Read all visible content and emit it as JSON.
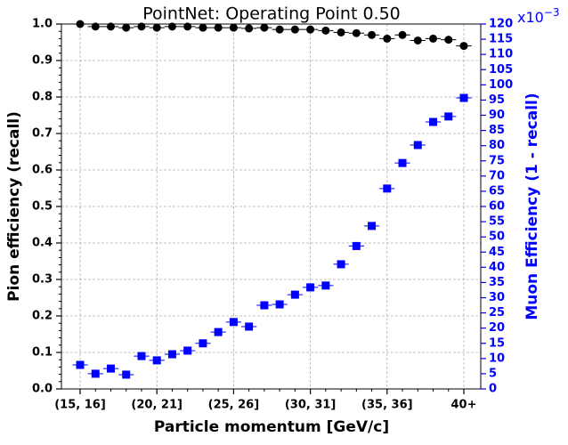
{
  "chart_data": {
    "type": "scatter",
    "title": "PointNet: Operating Point 0.50",
    "xlabel": "Particle momentum [GeV/c]",
    "ylabel": "Pion efficiency (recall)",
    "y2label": "Muon Efficiency (1 - recall)",
    "y2_offset_base": "x10",
    "y2_offset_exponent": "−3",
    "categories": [
      "(15, 16]",
      null,
      null,
      null,
      null,
      "(20, 21]",
      null,
      null,
      null,
      null,
      "(25, 26]",
      null,
      null,
      null,
      null,
      "(30, 31]",
      null,
      null,
      null,
      null,
      "(35, 36]",
      null,
      null,
      null,
      null,
      "40+"
    ],
    "ylim": [
      0,
      1
    ],
    "yticks": [
      {
        "value": 0,
        "label": "0.0"
      },
      0.1,
      0.2,
      0.3,
      0.4,
      0.5,
      0.6,
      0.7,
      0.8,
      0.9,
      {
        "value": 1,
        "label": "1.0"
      }
    ],
    "y2lim": [
      0,
      120
    ],
    "y2ticks": [
      0,
      5,
      10,
      15,
      20,
      25,
      30,
      35,
      40,
      45,
      50,
      55,
      60,
      65,
      70,
      75,
      80,
      85,
      90,
      95,
      100,
      105,
      110,
      115,
      120
    ],
    "grid": true,
    "series": [
      {
        "name": "Pion efficiency",
        "color": "#000000",
        "marker": "circle",
        "values": [
          1.0,
          0.993,
          0.993,
          0.99,
          0.993,
          0.99,
          0.993,
          0.993,
          0.99,
          0.99,
          0.99,
          0.988,
          0.99,
          0.985,
          0.985,
          0.985,
          0.982,
          0.977,
          0.975,
          0.97,
          0.96,
          0.97,
          0.955,
          0.96,
          0.957,
          0.94
        ]
      },
      {
        "name": "Muon efficiency",
        "color": "#0000ff",
        "marker": "square",
        "axis": "y2",
        "values": [
          7.9,
          5,
          6.7,
          4.7,
          10.8,
          9.4,
          11.4,
          12.6,
          15,
          18.7,
          22,
          20.5,
          27.5,
          27.8,
          31,
          33.4,
          34,
          41,
          47,
          53.6,
          65.9,
          74.3,
          80.2,
          87.8,
          89.6,
          95.7
        ]
      }
    ]
  }
}
